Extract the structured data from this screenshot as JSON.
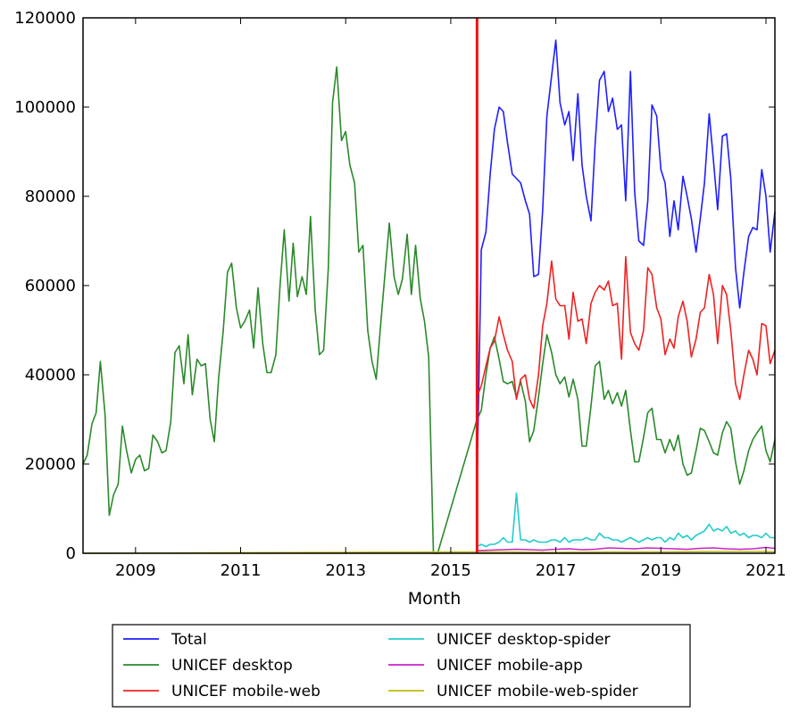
{
  "chart_data": {
    "type": "line",
    "title": "",
    "xlabel": "Month",
    "ylabel": "",
    "xlim": [
      2008.0,
      2021.17
    ],
    "ylim": [
      0,
      120000
    ],
    "x_ticks": [
      2009,
      2011,
      2013,
      2015,
      2017,
      2019,
      2021
    ],
    "x_tick_labels": [
      "2009",
      "2011",
      "2013",
      "2015",
      "2017",
      "2019",
      "2021"
    ],
    "y_ticks": [
      0,
      20000,
      40000,
      60000,
      80000,
      100000,
      120000
    ],
    "y_tick_labels": [
      "0",
      "20000",
      "40000",
      "60000",
      "80000",
      "100000",
      "120000"
    ],
    "vertical_marker": {
      "x": 2015.5,
      "color": "#ee1111"
    },
    "grid": false,
    "legend_placement": "below",
    "series": [
      {
        "name": "Total",
        "color": "#1f1fff",
        "x": [
          2015.5,
          2015.58,
          2015.67,
          2015.75,
          2015.83,
          2015.92,
          2016.0,
          2016.08,
          2016.17,
          2016.25,
          2016.33,
          2016.42,
          2016.5,
          2016.58,
          2016.67,
          2016.75,
          2016.83,
          2016.92,
          2017.0,
          2017.08,
          2017.17,
          2017.25,
          2017.33,
          2017.42,
          2017.5,
          2017.58,
          2017.67,
          2017.75,
          2017.83,
          2017.92,
          2018.0,
          2018.08,
          2018.17,
          2018.25,
          2018.33,
          2018.42,
          2018.5,
          2018.58,
          2018.67,
          2018.75,
          2018.83,
          2018.92,
          2019.0,
          2019.08,
          2019.17,
          2019.25,
          2019.33,
          2019.42,
          2019.5,
          2019.58,
          2019.67,
          2019.75,
          2019.83,
          2019.92,
          2020.0,
          2020.08,
          2020.17,
          2020.25,
          2020.33,
          2020.42,
          2020.5,
          2020.58,
          2020.67,
          2020.75,
          2020.83,
          2020.92,
          2021.0,
          2021.08,
          2021.17
        ],
        "values": [
          15000,
          68000,
          72000,
          85000,
          95000,
          100000,
          99000,
          92000,
          85000,
          84000,
          83000,
          79000,
          76000,
          62000,
          62500,
          77000,
          98000,
          107000,
          115000,
          101000,
          96000,
          99000,
          88000,
          103000,
          87000,
          80000,
          74500,
          92000,
          106000,
          108000,
          99000,
          102000,
          95000,
          96000,
          79000,
          108000,
          81000,
          70000,
          69000,
          79000,
          100500,
          98000,
          86000,
          83000,
          71000,
          79000,
          72500,
          84500,
          80000,
          75000,
          67500,
          75000,
          83000,
          98500,
          88000,
          77000,
          93500,
          94000,
          84000,
          64000,
          55000,
          63000,
          71000,
          73000,
          72500,
          86000,
          80000,
          67500,
          76500
        ]
      },
      {
        "name": "UNICEF desktop",
        "color": "#2a8a2a",
        "x": [
          2008.0,
          2008.08,
          2008.17,
          2008.25,
          2008.33,
          2008.42,
          2008.5,
          2008.58,
          2008.67,
          2008.75,
          2008.83,
          2008.92,
          2009.0,
          2009.08,
          2009.17,
          2009.25,
          2009.33,
          2009.42,
          2009.5,
          2009.58,
          2009.67,
          2009.75,
          2009.83,
          2009.92,
          2010.0,
          2010.08,
          2010.17,
          2010.25,
          2010.33,
          2010.42,
          2010.5,
          2010.58,
          2010.67,
          2010.75,
          2010.83,
          2010.92,
          2011.0,
          2011.08,
          2011.17,
          2011.25,
          2011.33,
          2011.42,
          2011.5,
          2011.58,
          2011.67,
          2011.75,
          2011.83,
          2011.92,
          2012.0,
          2012.08,
          2012.17,
          2012.25,
          2012.33,
          2012.42,
          2012.5,
          2012.58,
          2012.67,
          2012.75,
          2012.83,
          2012.92,
          2013.0,
          2013.08,
          2013.17,
          2013.25,
          2013.33,
          2013.42,
          2013.5,
          2013.58,
          2013.67,
          2013.75,
          2013.83,
          2013.92,
          2014.0,
          2014.08,
          2014.17,
          2014.25,
          2014.33,
          2014.42,
          2014.5,
          2014.58,
          2014.67,
          2014.75,
          2015.5,
          2015.58,
          2015.67,
          2015.75,
          2015.83,
          2015.92,
          2016.0,
          2016.08,
          2016.17,
          2016.25,
          2016.33,
          2016.42,
          2016.5,
          2016.58,
          2016.67,
          2016.75,
          2016.83,
          2016.92,
          2017.0,
          2017.08,
          2017.17,
          2017.25,
          2017.33,
          2017.42,
          2017.5,
          2017.58,
          2017.67,
          2017.75,
          2017.83,
          2017.92,
          2018.0,
          2018.08,
          2018.17,
          2018.25,
          2018.33,
          2018.42,
          2018.5,
          2018.58,
          2018.67,
          2018.75,
          2018.83,
          2018.92,
          2019.0,
          2019.08,
          2019.17,
          2019.25,
          2019.33,
          2019.42,
          2019.5,
          2019.58,
          2019.67,
          2019.75,
          2019.83,
          2019.92,
          2020.0,
          2020.08,
          2020.17,
          2020.25,
          2020.33,
          2020.42,
          2020.5,
          2020.58,
          2020.67,
          2020.75,
          2020.83,
          2020.92,
          2021.0,
          2021.08,
          2021.17
        ],
        "values": [
          20000,
          22000,
          29000,
          31500,
          43000,
          31000,
          8500,
          13000,
          15500,
          28500,
          23000,
          18000,
          21000,
          22000,
          18500,
          19000,
          26500,
          25000,
          22500,
          23000,
          29500,
          45000,
          46500,
          38000,
          49000,
          35500,
          43500,
          42000,
          42500,
          30000,
          25000,
          39000,
          50000,
          63000,
          65000,
          55000,
          50500,
          52000,
          54500,
          46000,
          59500,
          47000,
          40500,
          40500,
          44500,
          60000,
          72500,
          56500,
          69500,
          57500,
          62000,
          58000,
          75500,
          54500,
          44500,
          45500,
          64000,
          101000,
          109000,
          92500,
          94500,
          87000,
          83000,
          67500,
          69000,
          50000,
          43000,
          39000,
          52000,
          63000,
          74000,
          62000,
          58000,
          61500,
          71500,
          58000,
          69000,
          57000,
          52000,
          44000,
          0,
          0,
          30000,
          32000,
          40000,
          46000,
          48500,
          43500,
          38500,
          38000,
          38500,
          35000,
          38500,
          34000,
          25000,
          27500,
          35000,
          42500,
          49000,
          45000,
          40000,
          38000,
          39500,
          35000,
          39000,
          34500,
          24000,
          24000,
          33000,
          42000,
          43000,
          34500,
          36500,
          33500,
          36000,
          33000,
          36500,
          27500,
          20500,
          20500,
          26000,
          31500,
          32500,
          25500,
          25500,
          22500,
          25500,
          23000,
          26500,
          20000,
          17500,
          18000,
          23000,
          28000,
          27500,
          25000,
          22500,
          22000,
          27000,
          29500,
          28000,
          20500,
          15500,
          18500,
          23000,
          25500,
          27000,
          28500,
          23000,
          20500,
          25500
        ]
      },
      {
        "name": "UNICEF mobile-web",
        "color": "#ee2222",
        "x": [
          2015.5,
          2015.58,
          2015.67,
          2015.75,
          2015.83,
          2015.92,
          2016.0,
          2016.08,
          2016.17,
          2016.25,
          2016.33,
          2016.42,
          2016.5,
          2016.58,
          2016.67,
          2016.75,
          2016.83,
          2016.92,
          2017.0,
          2017.08,
          2017.17,
          2017.25,
          2017.33,
          2017.42,
          2017.5,
          2017.58,
          2017.67,
          2017.75,
          2017.83,
          2017.92,
          2018.0,
          2018.08,
          2018.17,
          2018.25,
          2018.33,
          2018.42,
          2018.5,
          2018.58,
          2018.67,
          2018.75,
          2018.83,
          2018.92,
          2019.0,
          2019.08,
          2019.17,
          2019.25,
          2019.33,
          2019.42,
          2019.5,
          2019.58,
          2019.67,
          2019.75,
          2019.83,
          2019.92,
          2020.0,
          2020.08,
          2020.17,
          2020.25,
          2020.33,
          2020.42,
          2020.5,
          2020.58,
          2020.67,
          2020.75,
          2020.83,
          2020.92,
          2021.0,
          2021.08,
          2021.17
        ],
        "values": [
          35000,
          37500,
          42000,
          46000,
          47500,
          53000,
          49000,
          45500,
          43000,
          34500,
          39000,
          40000,
          34500,
          32500,
          40000,
          51000,
          56000,
          65500,
          57000,
          55500,
          55500,
          48000,
          58500,
          52000,
          52500,
          47000,
          56000,
          58500,
          60000,
          59000,
          61000,
          55500,
          56000,
          43500,
          66500,
          49500,
          47000,
          45500,
          50000,
          64000,
          62500,
          55000,
          52500,
          44500,
          48000,
          46000,
          53000,
          56500,
          52000,
          44000,
          48000,
          54000,
          55000,
          62500,
          58000,
          47000,
          60000,
          58000,
          50000,
          38000,
          34500,
          40000,
          45500,
          43500,
          40000,
          51500,
          51000,
          42500,
          45500
        ]
      },
      {
        "name": "UNICEF desktop-spider",
        "color": "#22cccc",
        "x": [
          2015.5,
          2015.58,
          2015.67,
          2015.75,
          2015.83,
          2015.92,
          2016.0,
          2016.08,
          2016.17,
          2016.25,
          2016.33,
          2016.42,
          2016.5,
          2016.58,
          2016.67,
          2016.75,
          2016.83,
          2016.92,
          2017.0,
          2017.08,
          2017.17,
          2017.25,
          2017.33,
          2017.42,
          2017.5,
          2017.58,
          2017.67,
          2017.75,
          2017.83,
          2017.92,
          2018.0,
          2018.08,
          2018.17,
          2018.25,
          2018.33,
          2018.42,
          2018.5,
          2018.58,
          2018.67,
          2018.75,
          2018.83,
          2018.92,
          2019.0,
          2019.08,
          2019.17,
          2019.25,
          2019.33,
          2019.42,
          2019.5,
          2019.58,
          2019.67,
          2019.75,
          2019.83,
          2019.92,
          2020.0,
          2020.08,
          2020.17,
          2020.25,
          2020.33,
          2020.42,
          2020.5,
          2020.58,
          2020.67,
          2020.75,
          2020.83,
          2020.92,
          2021.0,
          2021.08,
          2021.17
        ],
        "values": [
          1500,
          2000,
          1500,
          2000,
          2000,
          2500,
          3500,
          2500,
          2500,
          13500,
          3000,
          3000,
          2500,
          3000,
          2500,
          2500,
          2500,
          3000,
          3000,
          2500,
          3500,
          2500,
          3000,
          3000,
          3000,
          3500,
          3000,
          3000,
          4500,
          3500,
          3500,
          3000,
          3000,
          2500,
          3000,
          3500,
          3000,
          2500,
          3000,
          3500,
          3000,
          3500,
          3500,
          2500,
          3500,
          3000,
          4500,
          3500,
          4000,
          3000,
          4000,
          4500,
          5000,
          6500,
          5000,
          5500,
          5000,
          6000,
          4500,
          5000,
          4000,
          4500,
          3500,
          4000,
          4000,
          3500,
          4500,
          3500,
          3500
        ]
      },
      {
        "name": "UNICEF mobile-app",
        "color": "#cc22cc",
        "x": [
          2015.5,
          2015.75,
          2016.0,
          2016.25,
          2016.5,
          2016.75,
          2017.0,
          2017.25,
          2017.5,
          2017.75,
          2018.0,
          2018.25,
          2018.5,
          2018.75,
          2019.0,
          2019.25,
          2019.5,
          2019.75,
          2020.0,
          2020.25,
          2020.5,
          2020.75,
          2021.0,
          2021.17
        ],
        "values": [
          600,
          700,
          800,
          900,
          800,
          700,
          900,
          1000,
          800,
          900,
          1200,
          1100,
          1000,
          1200,
          1100,
          1000,
          900,
          1100,
          1200,
          1000,
          900,
          1000,
          1300,
          1100
        ]
      },
      {
        "name": "UNICEF mobile-web-spider",
        "color": "#bbbb11",
        "x": [
          2008.0,
          2015.5,
          2016.0,
          2017.0,
          2018.0,
          2019.0,
          2020.0,
          2021.0,
          2021.17
        ],
        "values": [
          0,
          300,
          300,
          200,
          300,
          300,
          400,
          400,
          300
        ]
      }
    ]
  }
}
